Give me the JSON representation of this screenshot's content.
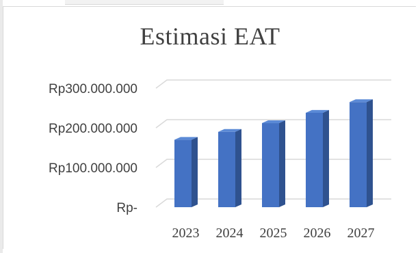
{
  "chart_data": {
    "type": "bar",
    "title": "Estimasi EAT",
    "xlabel": "",
    "ylabel": "",
    "categories": [
      "2023",
      "2024",
      "2025",
      "2026",
      "2027"
    ],
    "values": [
      170000000,
      190000000,
      212000000,
      238000000,
      265000000
    ],
    "ylim": [
      0,
      300000000
    ],
    "yticks": [
      0,
      100000000,
      200000000,
      300000000
    ],
    "ytick_labels": [
      "Rp-",
      "Rp100.000.000",
      "Rp200.000.000",
      "Rp300.000.000"
    ],
    "grid": true,
    "legend": "none",
    "style": "3d-column",
    "colors": {
      "bar_front": "#4472c4",
      "bar_side": "#2f528f",
      "bar_top": "#5b8ad6",
      "grid": "#d9d9d9",
      "text": "#404040"
    }
  }
}
